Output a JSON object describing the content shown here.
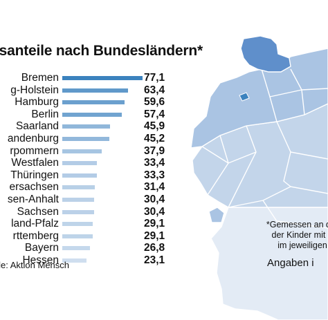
{
  "chart_data": {
    "type": "bar",
    "orientation": "horizontal",
    "title": "nsanteile nach Bundesländern*",
    "categories": [
      "Bremen",
      "g-Holstein",
      "Hamburg",
      "Berlin",
      "Saarland",
      "andenburg",
      "rpommern",
      "Westfalen",
      "Thüringen",
      "ersachsen",
      "sen-Anhalt",
      "Sachsen",
      "land-Pfalz",
      "rttemberg",
      "Bayern",
      "Hessen"
    ],
    "values": [
      77.1,
      63.4,
      59.6,
      57.4,
      45.9,
      45.2,
      37.9,
      33.4,
      33.3,
      31.4,
      30.4,
      30.4,
      29.1,
      29.1,
      26.8,
      23.1
    ],
    "value_labels": [
      "77,1",
      "63,4",
      "59,6",
      "57,4",
      "45,9",
      "45,2",
      "37,9",
      "33,4",
      "33,3",
      "31,4",
      "30,4",
      "30,4",
      "29,1",
      "29,1",
      "26,8",
      "23,1"
    ],
    "xlim": [
      0,
      77.1
    ],
    "colors": {
      "dark": "#3b82be",
      "light": "#cfdeef"
    }
  },
  "source": "elle: Aktion Mensch",
  "note": [
    "*Gemessen an der",
    "der Kinder mit F",
    "im jeweiligen"
  ],
  "unit": "Angaben i",
  "map_colors": [
    "#e3ebf5",
    "#c3d5ea",
    "#aac4e3",
    "#5f8fcb"
  ]
}
